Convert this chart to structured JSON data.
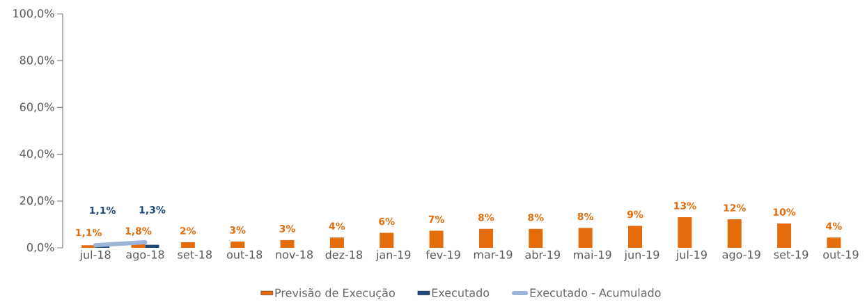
{
  "chart_data": {
    "type": "bar",
    "categories": [
      "jul-18",
      "ago-18",
      "set-18",
      "out-18",
      "nov-18",
      "dez-18",
      "jan-19",
      "fev-19",
      "mar-19",
      "abr-19",
      "mai-19",
      "jun-19",
      "jul-19",
      "ago-19",
      "set-19",
      "out-19"
    ],
    "series": [
      {
        "name": "Previsão de Execução",
        "color": "#e46c0a",
        "values": [
          1.1,
          1.8,
          2.4,
          2.7,
          3.3,
          4.4,
          6.4,
          7.3,
          8.1,
          8.1,
          8.5,
          9.4,
          13.1,
          12.2,
          10.4,
          4.4
        ],
        "value_labels": [
          "1,1%",
          "1,8%",
          "2%",
          "3%",
          "3%",
          "4%",
          "6%",
          "7%",
          "8%",
          "8%",
          "8%",
          "9%",
          "13%",
          "12%",
          "10%",
          "4%"
        ]
      },
      {
        "name": "Executado",
        "color": "#1f497d",
        "values": [
          1.1,
          1.3,
          null,
          null,
          null,
          null,
          null,
          null,
          null,
          null,
          null,
          null,
          null,
          null,
          null,
          null
        ],
        "value_labels": [
          "1,1%",
          "1,3%",
          null,
          null,
          null,
          null,
          null,
          null,
          null,
          null,
          null,
          null,
          null,
          null,
          null,
          null
        ]
      },
      {
        "name": "Executado - Acumulado",
        "type": "line",
        "color": "#9db3d7",
        "values": [
          1.1,
          2.4,
          null,
          null,
          null,
          null,
          null,
          null,
          null,
          null,
          null,
          null,
          null,
          null,
          null,
          null
        ]
      }
    ],
    "ylim": [
      0,
      100
    ],
    "yticks": [
      {
        "value": 0,
        "label": "0,0%"
      },
      {
        "value": 20,
        "label": "20,0%"
      },
      {
        "value": 40,
        "label": "40,0%"
      },
      {
        "value": 60,
        "label": "60,0%"
      },
      {
        "value": 80,
        "label": "80,0%"
      },
      {
        "value": 100,
        "label": "100,0%"
      }
    ],
    "legend": "bottom"
  }
}
